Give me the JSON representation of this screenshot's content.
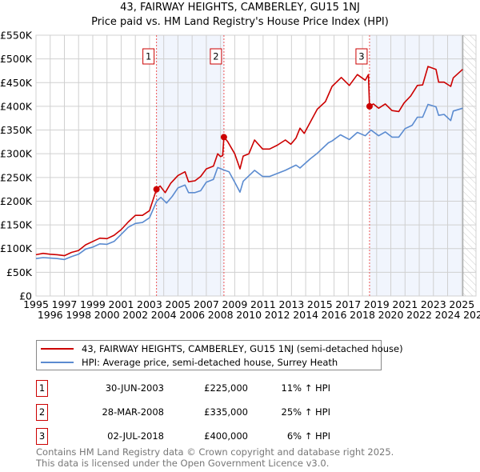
{
  "chart_data": {
    "type": "line",
    "title": "43, FAIRWAY HEIGHTS, CAMBERLEY, GU15 1NJ",
    "subtitle": "Price paid vs. HM Land Registry's House Price Index (HPI)",
    "xlim": [
      1995,
      2026
    ],
    "ylim": [
      0,
      550000
    ],
    "x_ticks": [
      "1995",
      "1996",
      "1997",
      "1998",
      "1999",
      "2000",
      "2001",
      "2002",
      "2003",
      "2004",
      "2005",
      "2006",
      "2007",
      "2008",
      "2009",
      "2010",
      "2011",
      "2012",
      "2013",
      "2014",
      "2015",
      "2016",
      "2017",
      "2018",
      "2019",
      "2020",
      "2021",
      "2022",
      "2023",
      "2024",
      "2025",
      "2026"
    ],
    "y_ticks": [
      {
        "value": 0,
        "label": "£0"
      },
      {
        "value": 50000,
        "label": "£50K"
      },
      {
        "value": 100000,
        "label": "£100K"
      },
      {
        "value": 150000,
        "label": "£150K"
      },
      {
        "value": 200000,
        "label": "£200K"
      },
      {
        "value": 250000,
        "label": "£250K"
      },
      {
        "value": 300000,
        "label": "£300K"
      },
      {
        "value": 350000,
        "label": "£350K"
      },
      {
        "value": 400000,
        "label": "£400K"
      },
      {
        "value": 450000,
        "label": "£450K"
      },
      {
        "value": 500000,
        "label": "£500K"
      },
      {
        "value": 550000,
        "label": "£550K"
      }
    ],
    "grid": true,
    "series": [
      {
        "name": "43, FAIRWAY HEIGHTS, CAMBERLEY, GU15 1NJ (semi-detached house)",
        "color": "#cc0000",
        "points": [
          [
            1995,
            87000
          ],
          [
            1995.5,
            90000
          ],
          [
            1996,
            88000
          ],
          [
            1996.5,
            87000
          ],
          [
            1997,
            85000
          ],
          [
            1997.5,
            92000
          ],
          [
            1998,
            96000
          ],
          [
            1998.5,
            108000
          ],
          [
            1999,
            115000
          ],
          [
            1999.5,
            122000
          ],
          [
            2000,
            121000
          ],
          [
            2000.5,
            128000
          ],
          [
            2001,
            140000
          ],
          [
            2001.5,
            156000
          ],
          [
            2002,
            170000
          ],
          [
            2002.5,
            170000
          ],
          [
            2003,
            180000
          ],
          [
            2003.49,
            225000
          ],
          [
            2003.75,
            232000
          ],
          [
            2004.1,
            218000
          ],
          [
            2004.5,
            238000
          ],
          [
            2005,
            254000
          ],
          [
            2005.5,
            262000
          ],
          [
            2005.75,
            241000
          ],
          [
            2006.2,
            243000
          ],
          [
            2006.6,
            252000
          ],
          [
            2007,
            268000
          ],
          [
            2007.5,
            274000
          ],
          [
            2007.8,
            300000
          ],
          [
            2008.0,
            294000
          ],
          [
            2008.15,
            296000
          ],
          [
            2008.24,
            335000
          ],
          [
            2008.5,
            326000
          ],
          [
            2009,
            300000
          ],
          [
            2009.37,
            268000
          ],
          [
            2009.6,
            295000
          ],
          [
            2010.0,
            300000
          ],
          [
            2010.4,
            329000
          ],
          [
            2010.97,
            310000
          ],
          [
            2011.45,
            310000
          ],
          [
            2012,
            318000
          ],
          [
            2012.57,
            329000
          ],
          [
            2012.95,
            320000
          ],
          [
            2013.32,
            333000
          ],
          [
            2013.6,
            354000
          ],
          [
            2013.9,
            343000
          ],
          [
            2014.35,
            368000
          ],
          [
            2014.82,
            394000
          ],
          [
            2015.39,
            410000
          ],
          [
            2015.86,
            442000
          ],
          [
            2016.51,
            461000
          ],
          [
            2017.08,
            444000
          ],
          [
            2017.64,
            467000
          ],
          [
            2018.2,
            455000
          ],
          [
            2018.42,
            467000
          ],
          [
            2018.5,
            400000
          ],
          [
            2018.77,
            405000
          ],
          [
            2019.14,
            396000
          ],
          [
            2019.61,
            405000
          ],
          [
            2020.08,
            391000
          ],
          [
            2020.56,
            389000
          ],
          [
            2020.93,
            407000
          ],
          [
            2021.4,
            422000
          ],
          [
            2021.87,
            444000
          ],
          [
            2022.24,
            445000
          ],
          [
            2022.62,
            484000
          ],
          [
            2023.18,
            478000
          ],
          [
            2023.37,
            451000
          ],
          [
            2023.75,
            451000
          ],
          [
            2024.22,
            442000
          ],
          [
            2024.4,
            460000
          ],
          [
            2025.06,
            478000
          ]
        ]
      },
      {
        "name": "HPI: Average price, semi-detached house, Surrey Heath",
        "color": "#5b8bd0",
        "points": [
          [
            1995,
            79000
          ],
          [
            1995.5,
            81000
          ],
          [
            1996,
            80000
          ],
          [
            1996.5,
            79000
          ],
          [
            1997,
            77000
          ],
          [
            1997.5,
            83000
          ],
          [
            1998,
            88000
          ],
          [
            1998.5,
            99000
          ],
          [
            1999,
            103000
          ],
          [
            1999.5,
            110000
          ],
          [
            2000,
            109000
          ],
          [
            2000.5,
            115000
          ],
          [
            2001,
            130000
          ],
          [
            2001.5,
            145000
          ],
          [
            2002,
            153000
          ],
          [
            2002.5,
            155000
          ],
          [
            2003,
            165000
          ],
          [
            2003.5,
            200000
          ],
          [
            2003.8,
            208000
          ],
          [
            2004.2,
            196000
          ],
          [
            2004.6,
            210000
          ],
          [
            2005,
            228000
          ],
          [
            2005.5,
            234000
          ],
          [
            2005.75,
            218000
          ],
          [
            2006.2,
            218000
          ],
          [
            2006.6,
            222000
          ],
          [
            2007,
            240000
          ],
          [
            2007.5,
            246000
          ],
          [
            2007.8,
            271000
          ],
          [
            2008.2,
            266000
          ],
          [
            2008.6,
            262000
          ],
          [
            2009,
            240000
          ],
          [
            2009.37,
            219000
          ],
          [
            2009.6,
            242000
          ],
          [
            2010.4,
            265000
          ],
          [
            2010.97,
            252000
          ],
          [
            2011.45,
            252000
          ],
          [
            2012.57,
            265000
          ],
          [
            2013.32,
            276000
          ],
          [
            2013.6,
            270000
          ],
          [
            2014.35,
            290000
          ],
          [
            2014.82,
            301000
          ],
          [
            2015.6,
            323000
          ],
          [
            2015.86,
            327000
          ],
          [
            2016.45,
            340000
          ],
          [
            2017.08,
            330000
          ],
          [
            2017.64,
            345000
          ],
          [
            2018.2,
            338000
          ],
          [
            2018.6,
            350000
          ],
          [
            2019.14,
            338000
          ],
          [
            2019.61,
            346000
          ],
          [
            2020.08,
            335000
          ],
          [
            2020.56,
            335000
          ],
          [
            2021.0,
            353000
          ],
          [
            2021.5,
            360000
          ],
          [
            2021.87,
            377000
          ],
          [
            2022.24,
            377000
          ],
          [
            2022.62,
            404000
          ],
          [
            2023.18,
            399000
          ],
          [
            2023.37,
            381000
          ],
          [
            2023.75,
            383000
          ],
          [
            2024.22,
            370000
          ],
          [
            2024.4,
            390000
          ],
          [
            2025.06,
            396000
          ]
        ]
      }
    ],
    "sales": [
      {
        "label": "1",
        "x": 2003.49,
        "value": 225000
      },
      {
        "label": "2",
        "x": 2008.24,
        "value": 335000
      },
      {
        "label": "3",
        "x": 2018.5,
        "value": 400000
      }
    ],
    "shaded_ranges": [
      [
        2003.49,
        2008.24
      ],
      [
        2018.5,
        2025.08
      ]
    ],
    "data_end": 2025.08,
    "legend_placement": "below"
  },
  "legend": {
    "items": [
      {
        "label": "43, FAIRWAY HEIGHTS, CAMBERLEY, GU15 1NJ (semi-detached house)",
        "color": "#cc0000"
      },
      {
        "label": "HPI: Average price, semi-detached house, Surrey Heath",
        "color": "#5b8bd0"
      }
    ]
  },
  "table": [
    {
      "num": "1",
      "date": "30-JUN-2003",
      "price": "£225,000",
      "hpi": "11% ↑ HPI"
    },
    {
      "num": "2",
      "date": "28-MAR-2008",
      "price": "£335,000",
      "hpi": "25% ↑ HPI"
    },
    {
      "num": "3",
      "date": "02-JUL-2018",
      "price": "£400,000",
      "hpi": "6% ↑ HPI"
    }
  ],
  "footer": {
    "line1": "Contains HM Land Registry data © Crown copyright and database right 2025.",
    "line2": "This data is licensed under the Open Government Licence v3.0."
  }
}
